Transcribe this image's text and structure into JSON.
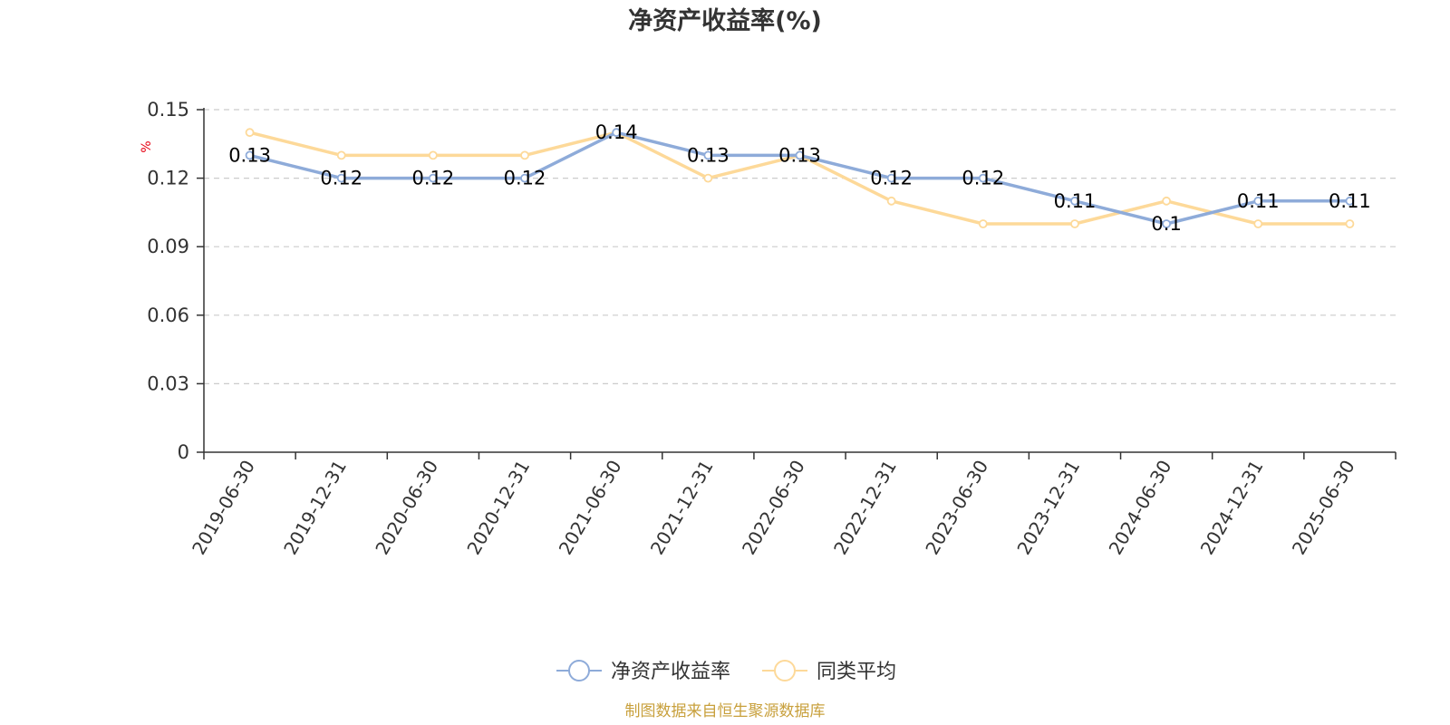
{
  "chart_data": {
    "type": "line",
    "title": "净资产收益率(%)",
    "ylabel": "%",
    "xlabel": "",
    "ylim": [
      0,
      0.15
    ],
    "yticks": [
      0,
      0.03,
      0.06,
      0.09,
      0.12,
      0.15
    ],
    "ytick_labels": [
      "0",
      "0.03",
      "0.06",
      "0.09",
      "0.12",
      "0.15"
    ],
    "categories": [
      "2019-06-30",
      "2019-12-31",
      "2020-06-30",
      "2020-12-31",
      "2021-06-30",
      "2021-12-31",
      "2022-06-30",
      "2022-12-31",
      "2023-06-30",
      "2023-12-31",
      "2024-06-30",
      "2024-12-31",
      "2025-06-30"
    ],
    "series": [
      {
        "name": "净资产收益率",
        "color": "#8eabd9",
        "values": [
          0.13,
          0.12,
          0.12,
          0.12,
          0.14,
          0.13,
          0.13,
          0.12,
          0.12,
          0.11,
          0.1,
          0.11,
          0.11
        ],
        "labels": [
          "0.13",
          "0.12",
          "0.12",
          "0.12",
          "0.14",
          "0.13",
          "0.13",
          "0.12",
          "0.12",
          "0.11",
          "0.1",
          "0.11",
          "0.11"
        ]
      },
      {
        "name": "同类平均",
        "color": "#fdd999",
        "values": [
          0.14,
          0.13,
          0.13,
          0.13,
          0.14,
          0.12,
          0.13,
          0.11,
          0.1,
          0.1,
          0.11,
          0.1,
          0.1
        ]
      }
    ],
    "grid": true,
    "legend": "bottom-center"
  },
  "source_text": "制图数据来自恒生聚源数据库"
}
